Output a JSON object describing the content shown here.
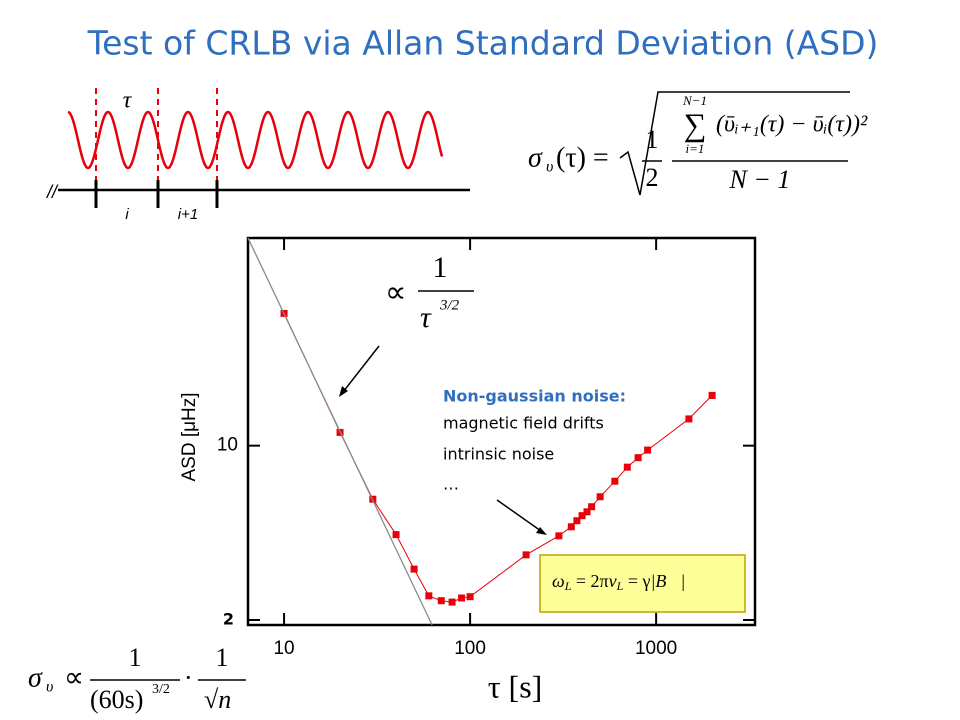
{
  "title": "Test of CRLB via Allan Standard Deviation (ASD)",
  "schematic": {
    "tau": "τ",
    "i": "i",
    "i_next": "i+1",
    "break": "//"
  },
  "formula_asd": {
    "sigma": "σ",
    "sub": "υ",
    "arg": "(τ) =",
    "one": "1",
    "two": "2",
    "sum": "∑",
    "sum_top": "N−1",
    "sum_bottom": "i=1",
    "numerator": "(ῡᵢ₊₁(τ) − ῡᵢ(τ))²",
    "denominator": "N − 1"
  },
  "formula_slope": {
    "prop": "∝",
    "one": "1",
    "tau": "τ",
    "power": "3/2"
  },
  "formula_box": [
    "ω",
    "L",
    " = 2π",
    "ν",
    "L",
    " = γ",
    "|B⃗|"
  ],
  "formula_bottom": {
    "sigma": "σ",
    "sub": "υ",
    "prop": "∝",
    "one": "1",
    "den1": "(60s)",
    "power": "3/2",
    "dot": "·",
    "one2": "1",
    "den2": "√n"
  },
  "annotations": [
    "Non-gaussian noise:",
    "magnetic field drifts",
    "intrinsic noise",
    "…"
  ],
  "chart_data": {
    "type": "scatter",
    "x_label": "τ [s]",
    "y_label": "ASD [μHz]",
    "xscale": "log",
    "yscale": "log",
    "xlim": [
      6.4,
      3400
    ],
    "ylim": [
      1.91,
      68
    ],
    "xticks": [
      10,
      100,
      1000
    ],
    "yticks": [
      2,
      10
    ],
    "series": [
      {
        "color": "#e8000b",
        "x": [
          10,
          20,
          30,
          40,
          50,
          60,
          70,
          80,
          90,
          100,
          200,
          300,
          350,
          375,
          400,
          425,
          450,
          500,
          600,
          700,
          800,
          900,
          1500,
          2000
        ],
        "values": [
          33.9,
          11.3,
          6.1,
          4.4,
          3.2,
          2.5,
          2.39,
          2.36,
          2.45,
          2.48,
          3.65,
          4.35,
          4.73,
          5.0,
          5.24,
          5.43,
          5.69,
          6.24,
          7.2,
          8.2,
          8.95,
          9.6,
          12.8,
          15.9
        ]
      },
      {
        "color": "#8a8a8a",
        "x": [
          6.4,
          62.5
        ],
        "values": [
          68,
          1.91
        ]
      }
    ]
  }
}
